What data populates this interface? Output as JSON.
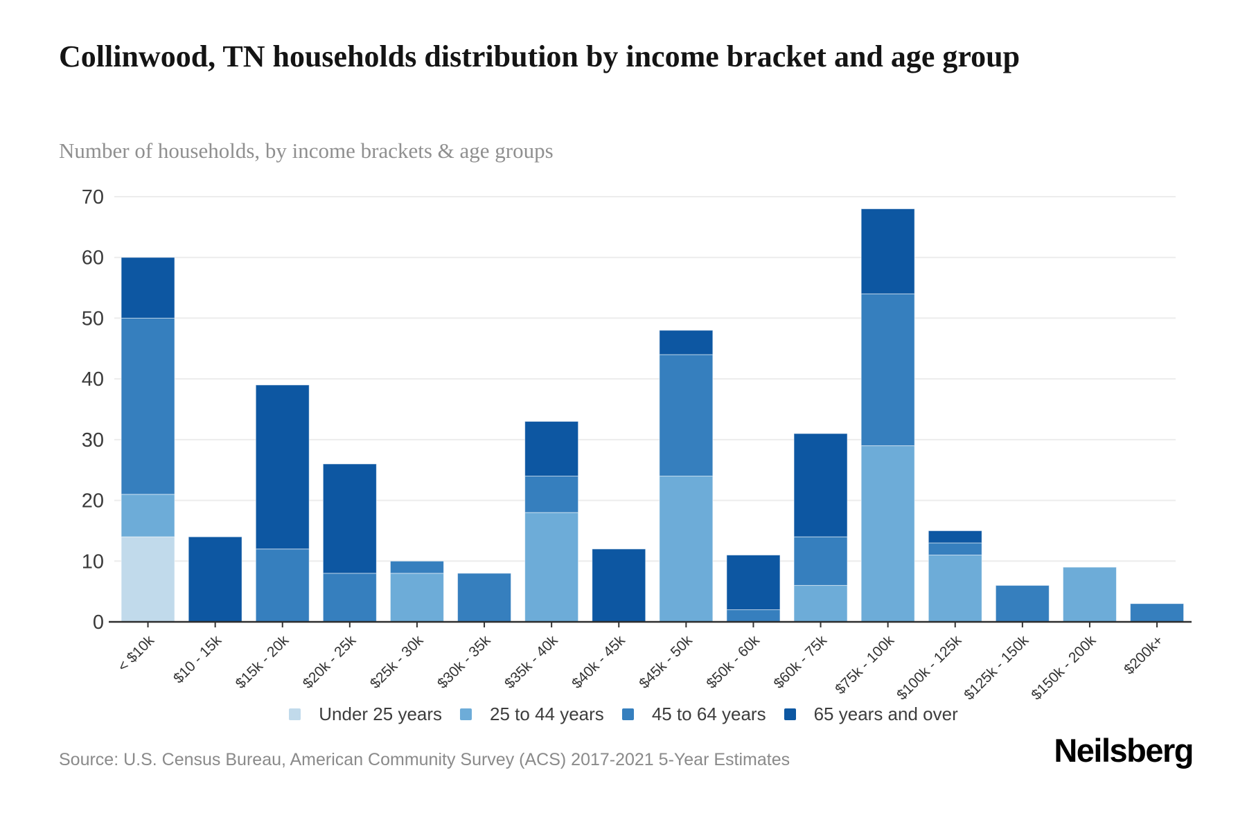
{
  "header": {
    "title": "Collinwood, TN households distribution by income bracket and age group",
    "subtitle": "Number of households, by income brackets & age groups"
  },
  "chart_data": {
    "type": "bar",
    "stacked": true,
    "title": "Collinwood, TN households distribution by income bracket and age group",
    "categories": [
      "< $10k",
      "$10 - 15k",
      "$15k - 20k",
      "$20k - 25k",
      "$25k - 30k",
      "$30k - 35k",
      "$35k - 40k",
      "$40k - 45k",
      "$45k - 50k",
      "$50k - 60k",
      "$60k - 75k",
      "$75k - 100k",
      "$100k - 125k",
      "$125k - 150k",
      "$150k - 200k",
      "$200k+"
    ],
    "series": [
      {
        "name": "Under 25 years",
        "color": "#c1daeb",
        "values": [
          14,
          0,
          0,
          0,
          0,
          0,
          0,
          0,
          0,
          0,
          0,
          0,
          0,
          0,
          0,
          0
        ]
      },
      {
        "name": "25 to 44 years",
        "color": "#6dacd8",
        "values": [
          7,
          0,
          0,
          0,
          8,
          0,
          18,
          0,
          24,
          0,
          6,
          29,
          11,
          0,
          9,
          0
        ]
      },
      {
        "name": "45 to 64 years",
        "color": "#367fbe",
        "values": [
          29,
          0,
          12,
          8,
          2,
          8,
          6,
          0,
          20,
          2,
          8,
          25,
          2,
          6,
          0,
          3
        ]
      },
      {
        "name": "65 years and over",
        "color": "#0d57a2",
        "values": [
          10,
          14,
          27,
          18,
          0,
          0,
          9,
          12,
          4,
          9,
          17,
          14,
          2,
          0,
          0,
          0
        ]
      }
    ],
    "totals": [
      60,
      14,
      39,
      26,
      10,
      8,
      33,
      12,
      48,
      11,
      31,
      68,
      15,
      6,
      9,
      3
    ],
    "xlabel": "",
    "ylabel": "",
    "ylim": [
      0,
      70
    ],
    "yticks": [
      0,
      10,
      20,
      30,
      40,
      50,
      60,
      70
    ],
    "grid": "horizontal",
    "legend_position": "bottom",
    "colors": {
      "gridline": "#ececec",
      "axis": "#2d2d2d",
      "tick_label": "#3a3a3a",
      "x_label": "#333333"
    }
  },
  "footer": {
    "source": "Source: U.S. Census Bureau, American Community Survey (ACS) 2017-2021 5-Year Estimates",
    "logo": "Neilsberg"
  }
}
